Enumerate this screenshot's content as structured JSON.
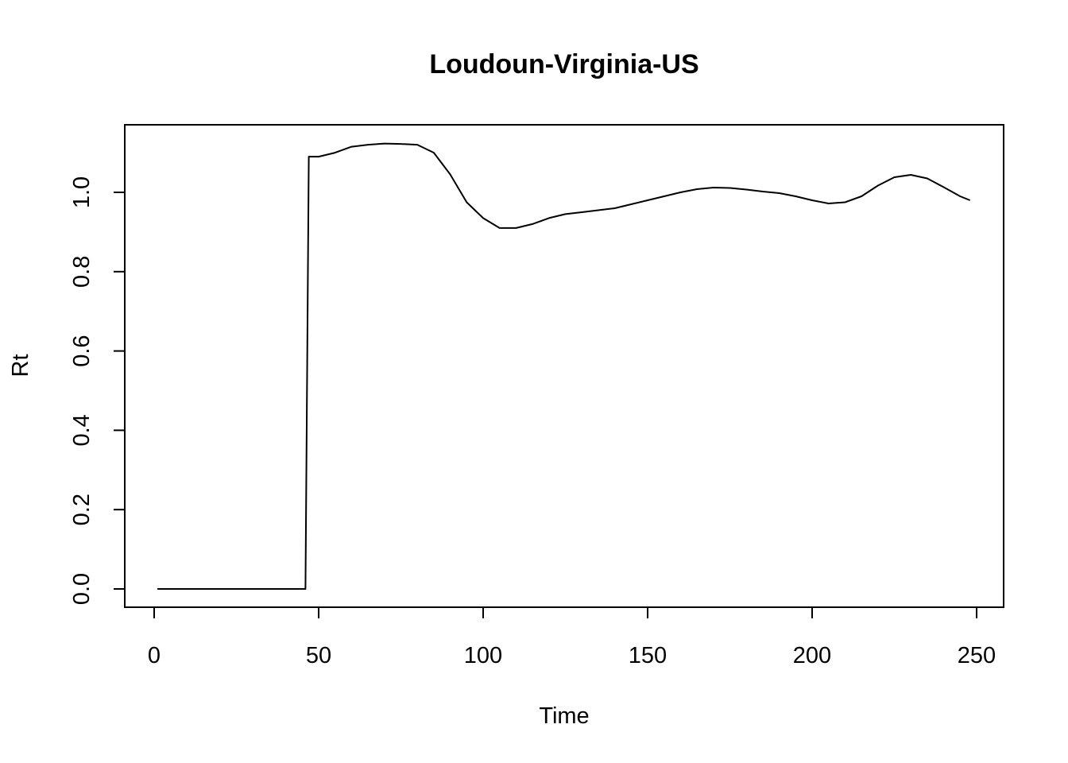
{
  "chart_data": {
    "type": "line",
    "title": "Loudoun-Virginia-US",
    "xlabel": "Time",
    "ylabel": "Rt",
    "xlim": [
      1,
      248
    ],
    "ylim": [
      0,
      1.13
    ],
    "x_ticks": [
      0,
      50,
      100,
      150,
      200,
      250
    ],
    "y_ticks": [
      0.0,
      0.2,
      0.4,
      0.6,
      0.8,
      1.0
    ],
    "x_tick_labels": [
      "0",
      "50",
      "100",
      "150",
      "200",
      "250"
    ],
    "y_tick_labels": [
      "0.0",
      "0.2",
      "0.4",
      "0.6",
      "0.8",
      "1.0"
    ],
    "grid": false,
    "legend": "none",
    "line_color": "#000000",
    "series": [
      {
        "x": [
          1,
          46,
          47,
          50,
          55,
          60,
          65,
          70,
          75,
          80,
          85,
          90,
          95,
          100,
          105,
          110,
          115,
          120,
          125,
          130,
          135,
          140,
          145,
          150,
          155,
          160,
          165,
          170,
          175,
          180,
          185,
          190,
          195,
          200,
          205,
          210,
          215,
          220,
          225,
          230,
          235,
          240,
          245,
          248
        ],
        "values": [
          0.0,
          0.0,
          1.09,
          1.09,
          1.1,
          1.115,
          1.12,
          1.123,
          1.122,
          1.12,
          1.1,
          1.045,
          0.975,
          0.935,
          0.91,
          0.91,
          0.92,
          0.935,
          0.945,
          0.95,
          0.955,
          0.96,
          0.97,
          0.98,
          0.99,
          1.0,
          1.008,
          1.012,
          1.011,
          1.007,
          1.002,
          0.998,
          0.99,
          0.98,
          0.972,
          0.975,
          0.99,
          1.017,
          1.038,
          1.044,
          1.035,
          1.013,
          0.99,
          0.98
        ]
      }
    ]
  }
}
